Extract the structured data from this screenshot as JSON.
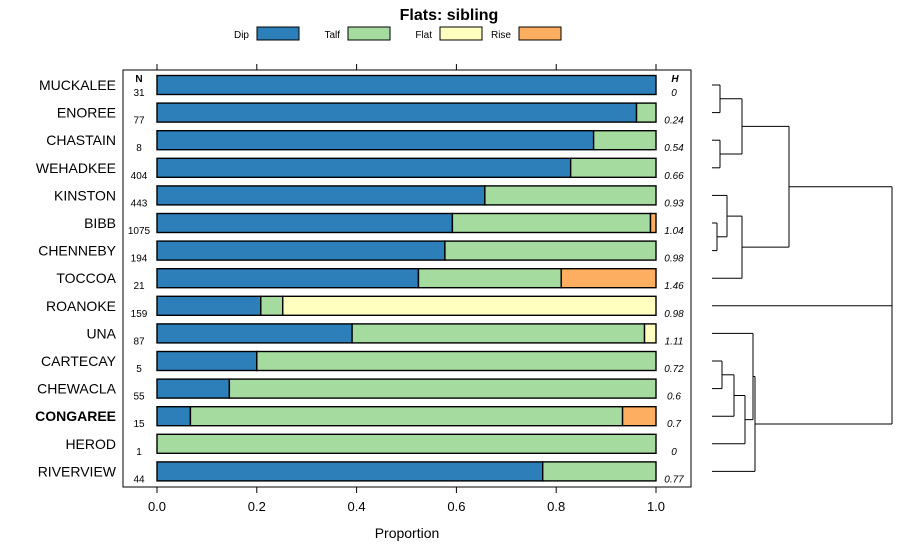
{
  "chart_data": {
    "type": "bar",
    "orientation": "horizontal",
    "stacked": true,
    "title": "Flats: sibling",
    "xlabel": "Proportion",
    "xlim": [
      0,
      1
    ],
    "xticks": [
      "0.0",
      "0.2",
      "0.4",
      "0.6",
      "0.8",
      "1.0"
    ],
    "n_header": "N",
    "h_header": "H",
    "legend": [
      {
        "name": "Dip",
        "color": "#2c7fb8"
      },
      {
        "name": "Talf",
        "color": "#a6dba0"
      },
      {
        "name": "Flat",
        "color": "#ffffbf"
      },
      {
        "name": "Rise",
        "color": "#fdae61"
      }
    ],
    "rows": [
      {
        "name": "MUCKALEE",
        "n": "31",
        "h": "0",
        "bold": false,
        "values": [
          1.0,
          0.0,
          0.0,
          0.0
        ]
      },
      {
        "name": "ENOREE",
        "n": "77",
        "h": "0.24",
        "bold": false,
        "values": [
          0.961,
          0.039,
          0.0,
          0.0
        ]
      },
      {
        "name": "CHASTAIN",
        "n": "8",
        "h": "0.54",
        "bold": false,
        "values": [
          0.875,
          0.125,
          0.0,
          0.0
        ]
      },
      {
        "name": "WEHADKEE",
        "n": "404",
        "h": "0.66",
        "bold": false,
        "values": [
          0.829,
          0.171,
          0.0,
          0.0
        ]
      },
      {
        "name": "KINSTON",
        "n": "443",
        "h": "0.93",
        "bold": false,
        "values": [
          0.657,
          0.343,
          0.0,
          0.0
        ]
      },
      {
        "name": "BIBB",
        "n": "1075",
        "h": "1.04",
        "bold": false,
        "values": [
          0.592,
          0.397,
          0.0,
          0.011
        ]
      },
      {
        "name": "CHENNEBY",
        "n": "194",
        "h": "0.98",
        "bold": false,
        "values": [
          0.577,
          0.423,
          0.0,
          0.0
        ]
      },
      {
        "name": "TOCCOA",
        "n": "21",
        "h": "1.46",
        "bold": false,
        "values": [
          0.524,
          0.286,
          0.0,
          0.19
        ]
      },
      {
        "name": "ROANOKE",
        "n": "159",
        "h": "0.98",
        "bold": false,
        "values": [
          0.208,
          0.044,
          0.748,
          0.0
        ]
      },
      {
        "name": "UNA",
        "n": "87",
        "h": "1.11",
        "bold": false,
        "values": [
          0.391,
          0.586,
          0.023,
          0.0
        ]
      },
      {
        "name": "CARTECAY",
        "n": "5",
        "h": "0.72",
        "bold": false,
        "values": [
          0.2,
          0.8,
          0.0,
          0.0
        ]
      },
      {
        "name": "CHEWACLA",
        "n": "55",
        "h": "0.6",
        "bold": false,
        "values": [
          0.145,
          0.855,
          0.0,
          0.0
        ]
      },
      {
        "name": "CONGAREE",
        "n": "15",
        "h": "0.7",
        "bold": true,
        "values": [
          0.067,
          0.866,
          0.0,
          0.067
        ]
      },
      {
        "name": "HEROD",
        "n": "1",
        "h": "0",
        "bold": false,
        "values": [
          0.0,
          1.0,
          0.0,
          0.0
        ]
      },
      {
        "name": "RIVERVIEW",
        "n": "44",
        "h": "0.77",
        "bold": false,
        "values": [
          0.773,
          0.227,
          0.0,
          0.0
        ]
      }
    ],
    "dendrogram": "hierarchical clustering of the 15 soil series, drawn to the right of the bars"
  }
}
